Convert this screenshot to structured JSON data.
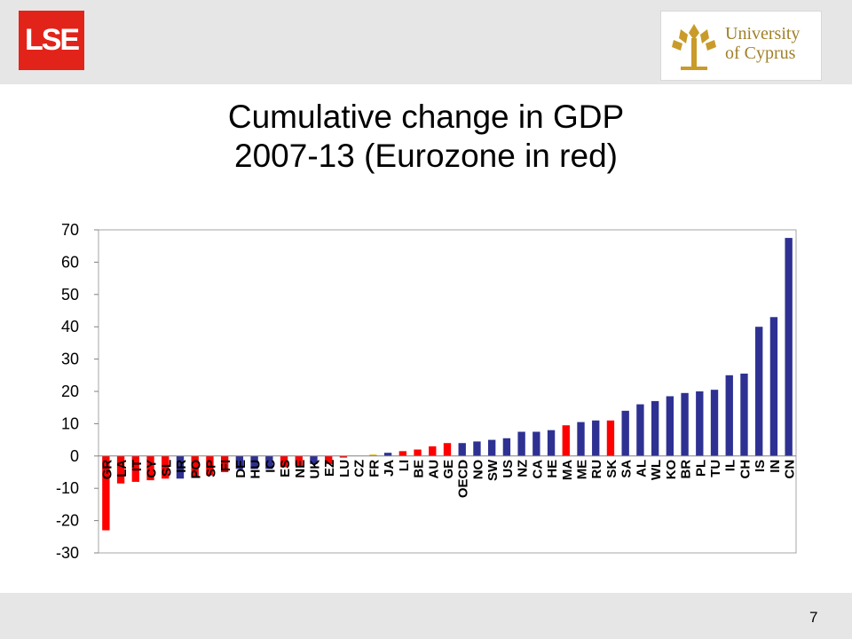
{
  "header": {
    "lse_logo_text": "LSE",
    "ucy_logo_line1": "University",
    "ucy_logo_line2": "of Cyprus"
  },
  "title": {
    "line1": "Cumulative change in GDP",
    "line2": "2007-13 (Eurozone in red)"
  },
  "page_number": "7",
  "colors": {
    "eurozone": "#ff0000",
    "non_eurozone": "#2e3192",
    "highlight": "#e8c23a"
  },
  "chart_data": {
    "type": "bar",
    "title": "Cumulative change in GDP 2007-13 (Eurozone in red)",
    "xlabel": "",
    "ylabel": "",
    "ylim": [
      -30,
      70
    ],
    "yticks": [
      70,
      60,
      50,
      40,
      30,
      20,
      10,
      0,
      -10,
      -20,
      -30
    ],
    "grid": false,
    "legend": "none",
    "categories": [
      "GR",
      "LA",
      "IT",
      "CY",
      "SL",
      "IR",
      "PO",
      "SP",
      "FI",
      "DE",
      "HU",
      "IC",
      "ES",
      "NE",
      "UK",
      "EZ",
      "LU",
      "CZ",
      "FR",
      "JA",
      "LI",
      "BE",
      "AU",
      "GE",
      "OECD",
      "NO",
      "SW",
      "US",
      "NZ",
      "CA",
      "HE",
      "MA",
      "ME",
      "RU",
      "SK",
      "SA",
      "AL",
      "WL",
      "KO",
      "BR",
      "PL",
      "TU",
      "IL",
      "CH",
      "IS",
      "IN",
      "CN"
    ],
    "values": [
      -23,
      -8.5,
      -8,
      -7.5,
      -7,
      -7,
      -6.5,
      -6,
      -5,
      -4,
      -4,
      -4,
      -3.5,
      -3,
      -2.5,
      -2.5,
      -0.5,
      0,
      0.5,
      1,
      1.5,
      2,
      3,
      4,
      4,
      4.5,
      5,
      5.5,
      7.5,
      7.5,
      8,
      9.5,
      10.5,
      11,
      11,
      14,
      16,
      17,
      18.5,
      19.5,
      20,
      20.5,
      25,
      25.5,
      40,
      43,
      67.5
    ],
    "bar_colors": [
      "red",
      "red",
      "red",
      "red",
      "red",
      "blue",
      "red",
      "red",
      "red",
      "blue",
      "blue",
      "blue",
      "red",
      "red",
      "blue",
      "red",
      "red",
      "blue",
      "gold",
      "blue",
      "red",
      "red",
      "red",
      "red",
      "blue",
      "blue",
      "blue",
      "blue",
      "blue",
      "blue",
      "blue",
      "red",
      "blue",
      "blue",
      "red",
      "blue",
      "blue",
      "blue",
      "blue",
      "blue",
      "blue",
      "blue",
      "blue",
      "blue",
      "blue",
      "blue",
      "blue"
    ]
  }
}
